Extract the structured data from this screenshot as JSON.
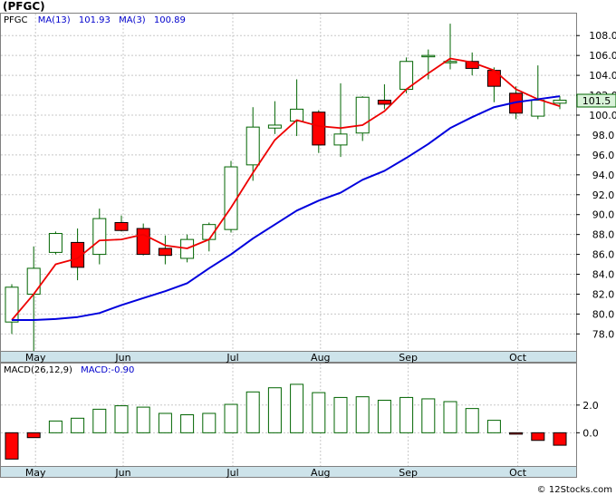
{
  "ticker_label": "(PFGC)",
  "ma_legend": {
    "ma13_label": "MA(13)",
    "ma13_value": "101.93",
    "ma3_label": "MA(3)",
    "ma3_value": "100.89"
  },
  "macd_legend": {
    "params_label": "MACD(26,12,9)",
    "value_label": "MACD:-0.90"
  },
  "last_price_label": "101.5",
  "watermark": "© 12Stocks.com",
  "colors": {
    "up_candle": "#ffffff",
    "down_candle": "#ff0000",
    "candle_outline": "#006400",
    "ma13_line": "#0000dd",
    "ma3_line": "#ee0000",
    "macd_pos_bar": "#ffffff",
    "macd_neg_bar": "#ff0000",
    "axis_strip": "#cde3ea",
    "grid": "#c8c8c8",
    "price_tag": "#d9f2d9"
  },
  "chart_data": [
    {
      "type": "candlestick",
      "interval": "weekly",
      "ylim": [
        76.3,
        110.3
      ],
      "grid": true,
      "y_ticks": [
        "78.0",
        "80.0",
        "82.0",
        "84.0",
        "86.0",
        "88.0",
        "90.0",
        "92.0",
        "94.0",
        "96.0",
        "98.0",
        "100.0",
        "102.0",
        "104.0",
        "106.0",
        "108.0"
      ],
      "x_ticks": [
        "May",
        "Jun",
        "Jul",
        "Aug",
        "Sep",
        "Oct"
      ],
      "x_tick_candle_index": [
        1,
        5,
        10,
        14,
        18,
        23
      ],
      "candles": [
        {
          "open": 79.2,
          "high": 83.0,
          "low": 78.0,
          "close": 82.7
        },
        {
          "open": 82.0,
          "high": 86.8,
          "low": 75.8,
          "close": 84.6
        },
        {
          "open": 86.2,
          "high": 88.3,
          "low": 86.0,
          "close": 88.1
        },
        {
          "open": 87.2,
          "high": 88.6,
          "low": 83.4,
          "close": 84.7
        },
        {
          "open": 86.0,
          "high": 90.6,
          "low": 85.0,
          "close": 89.6
        },
        {
          "open": 89.2,
          "high": 89.9,
          "low": 88.3,
          "close": 88.4
        },
        {
          "open": 88.6,
          "high": 89.1,
          "low": 85.9,
          "close": 86.0
        },
        {
          "open": 86.6,
          "high": 87.9,
          "low": 85.0,
          "close": 85.9
        },
        {
          "open": 85.6,
          "high": 88.0,
          "low": 85.2,
          "close": 87.5
        },
        {
          "open": 87.5,
          "high": 89.2,
          "low": 86.3,
          "close": 89.0
        },
        {
          "open": 88.5,
          "high": 95.4,
          "low": 88.2,
          "close": 94.8
        },
        {
          "open": 95.0,
          "high": 100.8,
          "low": 93.4,
          "close": 98.8
        },
        {
          "open": 98.7,
          "high": 101.4,
          "low": 98.1,
          "close": 99.0
        },
        {
          "open": 99.4,
          "high": 103.6,
          "low": 97.9,
          "close": 100.6
        },
        {
          "open": 100.3,
          "high": 100.5,
          "low": 96.2,
          "close": 97.0
        },
        {
          "open": 97.0,
          "high": 103.2,
          "low": 95.8,
          "close": 98.1
        },
        {
          "open": 98.2,
          "high": 101.9,
          "low": 97.4,
          "close": 101.8
        },
        {
          "open": 101.5,
          "high": 103.1,
          "low": 100.6,
          "close": 101.1
        },
        {
          "open": 102.6,
          "high": 105.8,
          "low": 102.2,
          "close": 105.4
        },
        {
          "open": 105.9,
          "high": 106.6,
          "low": 103.6,
          "close": 106.0
        },
        {
          "open": 105.4,
          "high": 109.2,
          "low": 104.6,
          "close": 105.4
        },
        {
          "open": 105.4,
          "high": 106.3,
          "low": 104.0,
          "close": 104.7
        },
        {
          "open": 104.5,
          "high": 104.8,
          "low": 101.3,
          "close": 102.9
        },
        {
          "open": 102.2,
          "high": 102.9,
          "low": 99.6,
          "close": 100.2
        },
        {
          "open": 99.9,
          "high": 105.0,
          "low": 99.6,
          "close": 101.5
        },
        {
          "open": 101.2,
          "high": 101.9,
          "low": 100.6,
          "close": 101.5
        }
      ],
      "ma13": [
        null,
        null,
        null,
        null,
        null,
        87.5,
        87.5,
        88.0,
        null,
        null,
        null,
        null,
        null,
        null,
        null,
        null,
        null,
        null,
        null,
        null,
        null,
        null,
        null,
        null,
        null,
        null
      ],
      "series": [
        {
          "name": "MA(13)",
          "values": [
            79.4,
            79.4,
            79.5,
            79.7,
            80.1,
            80.9,
            81.6,
            82.3,
            83.1,
            84.6,
            86.0,
            87.6,
            89.0,
            90.4,
            91.4,
            92.2,
            93.5,
            94.4,
            95.7,
            97.1,
            98.7,
            99.8,
            100.8,
            101.3,
            101.6,
            101.9
          ]
        },
        {
          "name": "MA(3)",
          "values": [
            79.4,
            82.0,
            85.0,
            85.6,
            87.4,
            87.5,
            88.0,
            86.9,
            86.6,
            87.5,
            90.7,
            94.2,
            97.5,
            99.5,
            98.9,
            98.7,
            99.0,
            100.4,
            102.6,
            104.2,
            105.7,
            105.3,
            104.5,
            102.6,
            101.6,
            100.9
          ]
        }
      ]
    },
    {
      "type": "bar",
      "title": "MACD(26,12,9)",
      "ylim": [
        -2.4,
        5.0
      ],
      "y_ticks": [
        "2.0",
        "0.0"
      ],
      "x_ticks": [
        "May",
        "Jun",
        "Jul",
        "Aug",
        "Sep",
        "Oct"
      ],
      "values": [
        -1.9,
        -0.35,
        0.85,
        1.05,
        1.7,
        1.95,
        1.85,
        1.4,
        1.3,
        1.4,
        2.05,
        2.95,
        3.25,
        3.5,
        2.9,
        2.55,
        2.6,
        2.35,
        2.55,
        2.45,
        2.25,
        1.75,
        0.9,
        -0.1,
        -0.55,
        -0.9
      ]
    }
  ]
}
